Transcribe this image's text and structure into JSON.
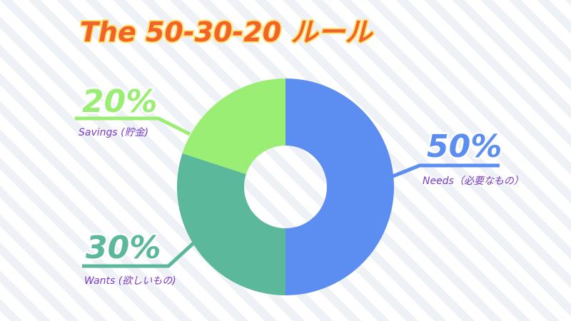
{
  "chart_data": {
    "type": "pie",
    "title": "The 50-30-20 ルール",
    "categories": [
      "Needs（必要なもの）",
      "Wants (欲しいもの)",
      "Savings (貯金)"
    ],
    "values": [
      50,
      30,
      20
    ],
    "value_labels": [
      "50%",
      "30%",
      "20%"
    ],
    "colors": [
      "#5b8ef0",
      "#5bb89a",
      "#9aee74"
    ]
  }
}
